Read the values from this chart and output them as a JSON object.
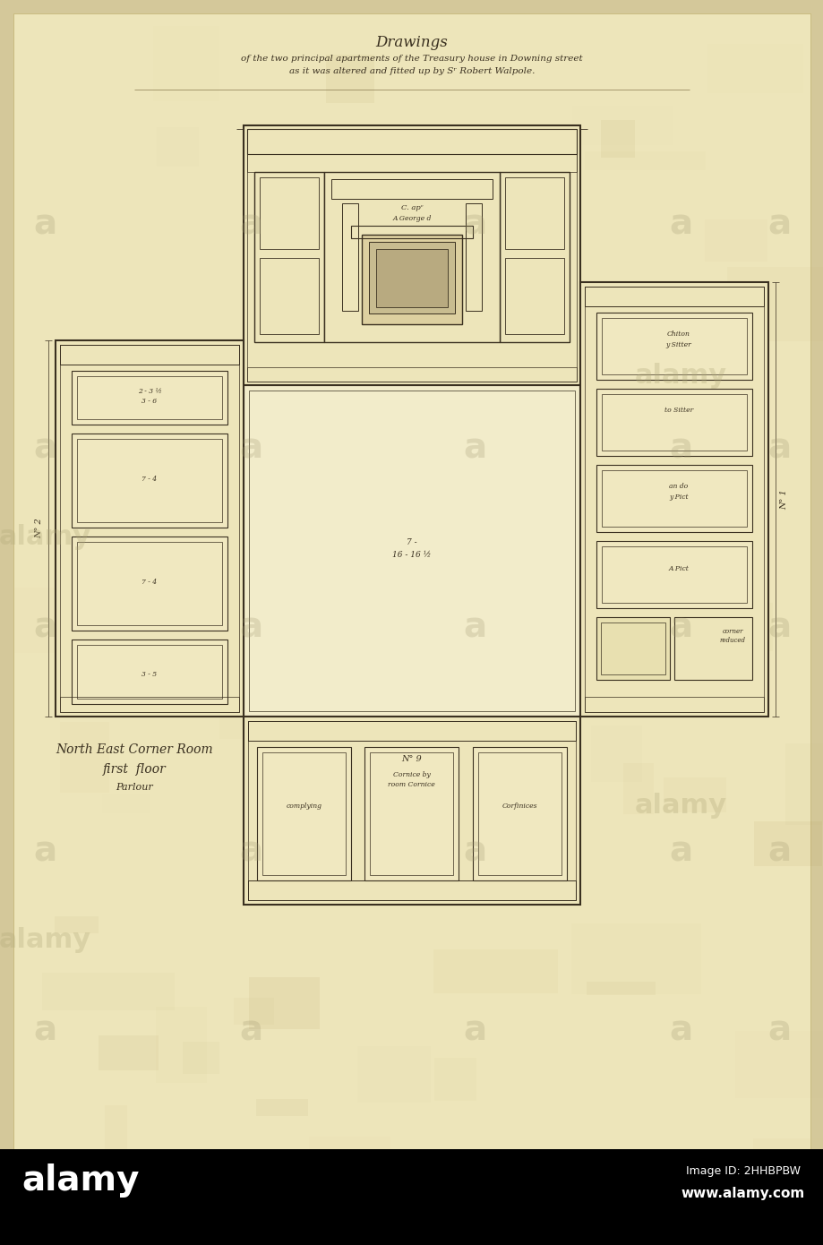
{
  "bg_color": "#d4c89a",
  "paper_color": "#e8ddb0",
  "paper_inner": "#ede5bc",
  "line_color": "#3a3020",
  "line_color_med": "#4a4030",
  "title_line1": "Drawings",
  "title_line2": "of the two principal apartments of the Treasury house in Downing street",
  "title_line3": "as it was altered and fitted up by Sʳ Robert Walpole.",
  "label_corner": "North East Corner Room\nfirst floor\nParlour",
  "figsize": [
    9.2,
    13.9
  ],
  "dpi": 100,
  "alamy_bar_color": "#000000",
  "alamy_text_color": "#ffffff",
  "alamy_watermark_color": "#b0a880"
}
